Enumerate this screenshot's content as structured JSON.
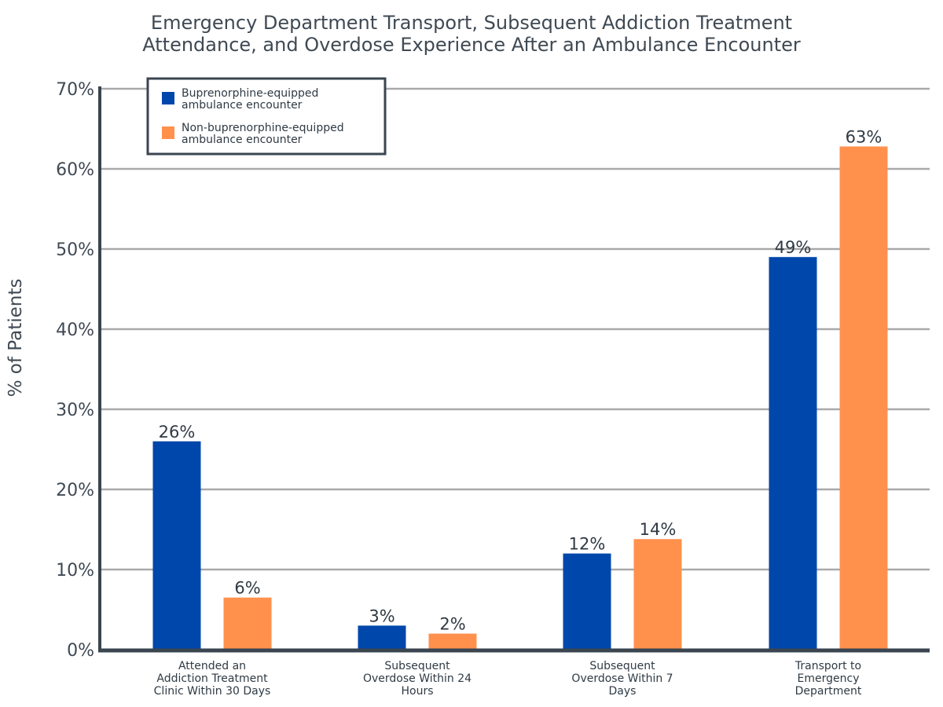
{
  "chart_data": {
    "type": "bar",
    "title_lines": [
      "Emergency Department Transport, Subsequent Addiction Treatment",
      "Attendance, and Overdose Experience After an Ambulance Encounter"
    ],
    "ylabel": "% of Patients",
    "xlabel": "",
    "ylim": [
      0,
      70
    ],
    "yticks": [
      0,
      10,
      20,
      30,
      40,
      50,
      60,
      70
    ],
    "ytick_labels": [
      "0%",
      "10%",
      "20%",
      "30%",
      "40%",
      "50%",
      "60%",
      "70%"
    ],
    "grid": true,
    "legend_position": "top-left",
    "categories": [
      [
        "Attended an",
        "Addiction Treatment",
        "Clinic Within 30 Days"
      ],
      [
        "Subsequent",
        "Overdose Within 24",
        "Hours"
      ],
      [
        "Subsequent",
        "Overdose Within 7",
        "Days"
      ],
      [
        "Transport to",
        "Emergency",
        "Department"
      ]
    ],
    "series": [
      {
        "legend_lines": [
          "Buprenorphine-equipped",
          "ambulance encounter"
        ],
        "color": "#0047ab",
        "values": [
          26,
          3,
          12,
          49
        ],
        "labels": [
          "26%",
          "3%",
          "12%",
          "49%"
        ]
      },
      {
        "legend_lines": [
          "Non-buprenorphine-equipped",
          "ambulance encounter"
        ],
        "color": "#ff914d",
        "values": [
          6.5,
          2,
          13.8,
          62.8
        ],
        "labels": [
          "6%",
          "2%",
          "14%",
          "63%"
        ]
      }
    ]
  }
}
